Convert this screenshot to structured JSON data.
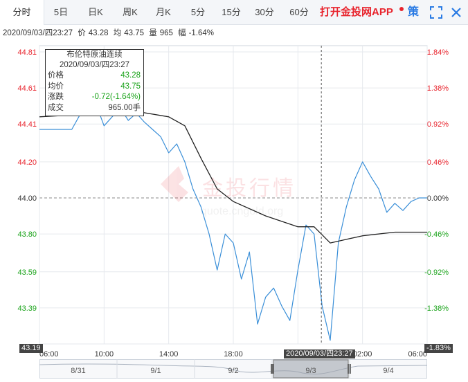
{
  "tabs": [
    {
      "label": "分时",
      "active": true
    },
    {
      "label": "5日"
    },
    {
      "label": "日K"
    },
    {
      "label": "周K"
    },
    {
      "label": "月K"
    },
    {
      "label": "5分"
    },
    {
      "label": "15分"
    },
    {
      "label": "30分"
    },
    {
      "label": "60分"
    }
  ],
  "app_link": "打开金投网APP",
  "strategy_label": "策",
  "icons": [
    "fullscreen-icon",
    "close-icon"
  ],
  "infoline": {
    "datetime": "2020/09/03/四23:27",
    "price_label": "价",
    "price": "43.28",
    "avg_label": "均",
    "avg": "43.75",
    "volume_label": "量",
    "volume": "965",
    "change_label": "幅",
    "change": "-1.64%"
  },
  "tooltip": {
    "title": "布伦特原油连续",
    "datetime": "2020/09/03/四23:27",
    "rows": [
      {
        "label": "价格",
        "value": "43.28",
        "color": "green"
      },
      {
        "label": "均价",
        "value": "43.75",
        "color": "green"
      },
      {
        "label": "涨跌",
        "value": "-0.72(-1.64%)",
        "color": "green"
      },
      {
        "label": "成交",
        "value": "965.00手",
        "color": "plain"
      }
    ]
  },
  "watermark": {
    "brand": "金投行情",
    "url": "quote.cngold.org"
  },
  "edge_badges": {
    "left": "43.19",
    "right": "-1.83%"
  },
  "time_badge": "2020/09/03/四23:27",
  "colors": {
    "up": "#e8242d",
    "down": "#1aa31a",
    "price_line": "#3a8fd8",
    "avg_line": "#222222",
    "accent": "#2a7be4"
  },
  "chart_data": {
    "type": "line",
    "y_ticks_left": [
      "44.81",
      "44.61",
      "44.41",
      "44.20",
      "44.00",
      "43.80",
      "43.59",
      "43.39",
      "43.19"
    ],
    "y_ticks_right": [
      "1.84%",
      "1.38%",
      "0.92%",
      "0.46%",
      "0.00%",
      "-0.46%",
      "-0.92%",
      "-1.38%",
      "-1.84%"
    ],
    "x_ticks": [
      "06:00",
      "10:00",
      "14:00",
      "18:00",
      "22:00",
      "02:00",
      "06:00"
    ],
    "ylim": [
      43.19,
      44.81
    ],
    "prev_close": 44.0,
    "x_start": "06:00",
    "x_end": "06:00 (+1d)",
    "series": [
      {
        "name": "价格",
        "points": [
          [
            "06:00",
            44.38
          ],
          [
            "07:00",
            44.38
          ],
          [
            "08:00",
            44.38
          ],
          [
            "08:30",
            44.46
          ],
          [
            "09:00",
            44.48
          ],
          [
            "09:30",
            44.52
          ],
          [
            "10:00",
            44.4
          ],
          [
            "10:30",
            44.45
          ],
          [
            "11:00",
            44.5
          ],
          [
            "11:30",
            44.43
          ],
          [
            "12:00",
            44.47
          ],
          [
            "12:30",
            44.42
          ],
          [
            "13:00",
            44.38
          ],
          [
            "13:30",
            44.34
          ],
          [
            "14:00",
            44.25
          ],
          [
            "14:30",
            44.3
          ],
          [
            "15:00",
            44.2
          ],
          [
            "15:30",
            44.05
          ],
          [
            "16:00",
            43.95
          ],
          [
            "16:30",
            43.8
          ],
          [
            "17:00",
            43.6
          ],
          [
            "17:30",
            43.8
          ],
          [
            "18:00",
            43.75
          ],
          [
            "18:30",
            43.55
          ],
          [
            "19:00",
            43.7
          ],
          [
            "19:30",
            43.3
          ],
          [
            "20:00",
            43.45
          ],
          [
            "20:30",
            43.5
          ],
          [
            "21:00",
            43.4
          ],
          [
            "21:30",
            43.32
          ],
          [
            "22:00",
            43.6
          ],
          [
            "22:30",
            43.85
          ],
          [
            "23:00",
            43.8
          ],
          [
            "23:30",
            43.4
          ],
          [
            "00:00",
            43.21
          ],
          [
            "00:30",
            43.75
          ],
          [
            "01:00",
            43.95
          ],
          [
            "01:30",
            44.1
          ],
          [
            "02:00",
            44.2
          ],
          [
            "02:30",
            44.12
          ],
          [
            "03:00",
            44.05
          ],
          [
            "03:30",
            43.92
          ],
          [
            "04:00",
            43.97
          ],
          [
            "04:30",
            43.93
          ],
          [
            "05:00",
            43.98
          ],
          [
            "05:30",
            44.0
          ],
          [
            "06:00",
            44.0
          ]
        ]
      },
      {
        "name": "均价",
        "points": [
          [
            "06:00",
            44.45
          ],
          [
            "10:00",
            44.47
          ],
          [
            "12:00",
            44.48
          ],
          [
            "14:00",
            44.45
          ],
          [
            "15:00",
            44.4
          ],
          [
            "16:00",
            44.22
          ],
          [
            "17:00",
            44.05
          ],
          [
            "18:00",
            43.98
          ],
          [
            "20:00",
            43.9
          ],
          [
            "22:00",
            43.84
          ],
          [
            "23:00",
            43.84
          ],
          [
            "00:00",
            43.75
          ],
          [
            "01:00",
            43.77
          ],
          [
            "02:00",
            43.79
          ],
          [
            "04:00",
            43.81
          ],
          [
            "06:00",
            43.81
          ]
        ]
      }
    ],
    "navigator": {
      "labels": [
        "8/31",
        "9/1",
        "9/2",
        "9/3",
        "9/4"
      ],
      "selected": "9/3"
    }
  }
}
